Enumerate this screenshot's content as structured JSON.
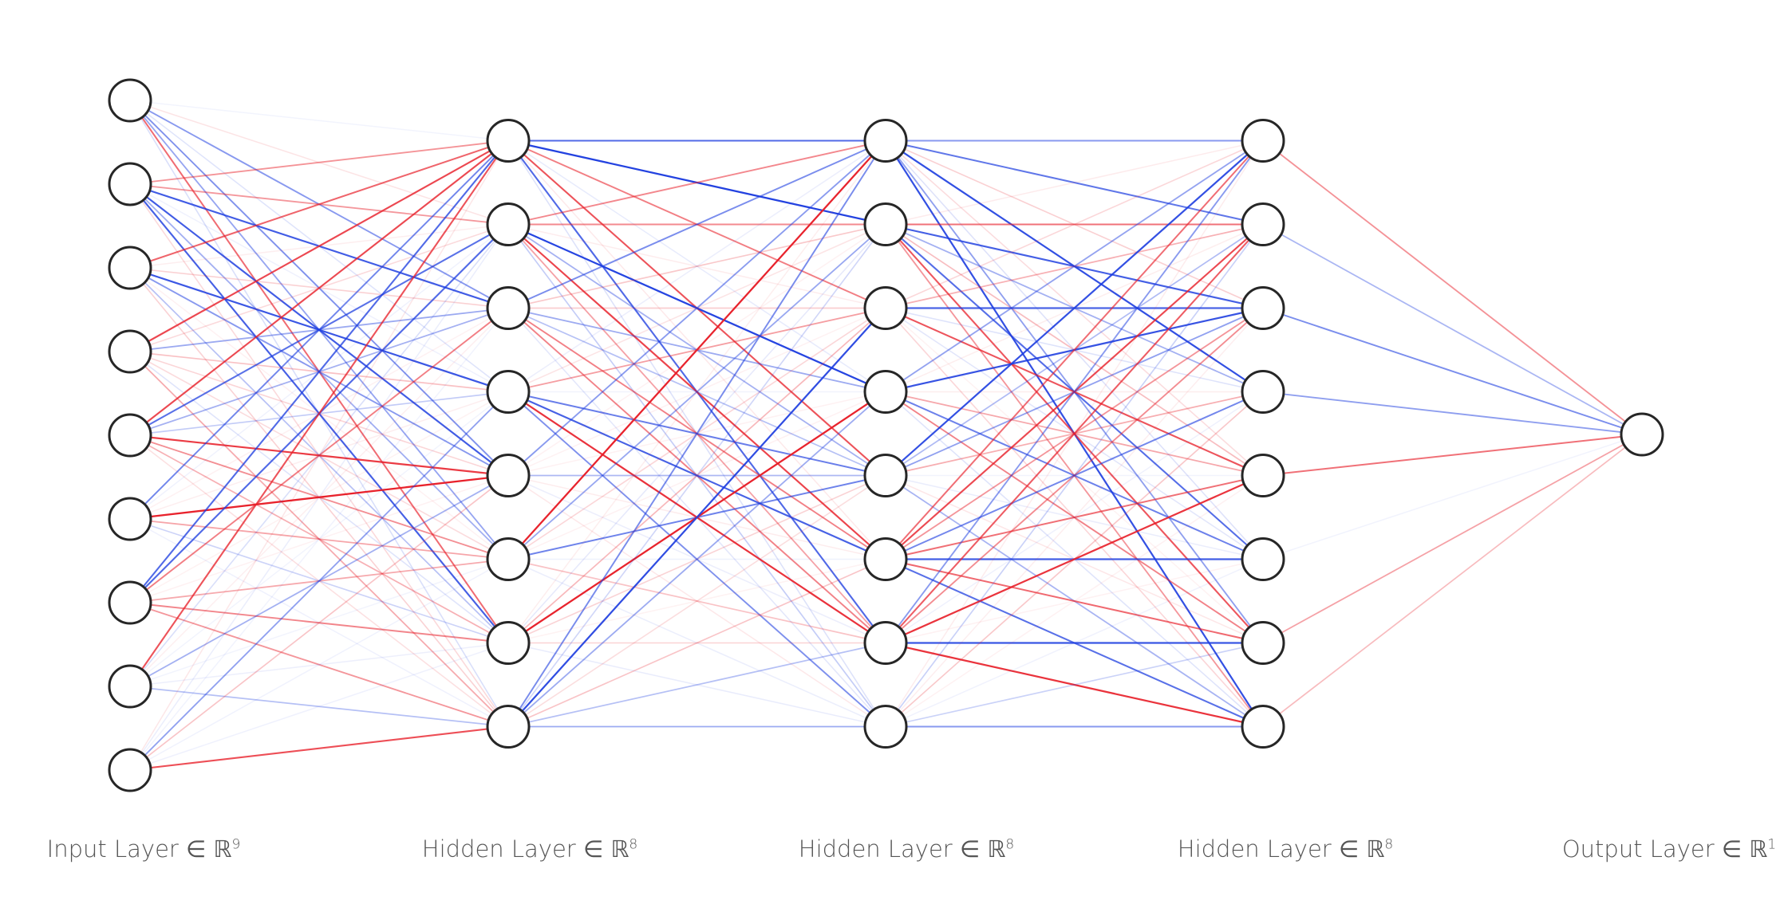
{
  "layers": [
    {
      "name": "Input Layer",
      "symbol": "∈ ℝ",
      "dim": "9",
      "size": 9
    },
    {
      "name": "Hidden Layer",
      "symbol": "∈ ℝ",
      "dim": "8",
      "size": 8
    },
    {
      "name": "Hidden Layer",
      "symbol": "∈ ℝ",
      "dim": "8",
      "size": 8
    },
    {
      "name": "Hidden Layer",
      "symbol": "∈ ℝ",
      "dim": "8",
      "size": 8
    },
    {
      "name": "Output Layer",
      "symbol": "∈ ℝ",
      "dim": "1",
      "size": 1
    }
  ],
  "colors": {
    "positive": "#e8202a",
    "negative": "#1f3fe0",
    "node_fill": "#ffffff",
    "node_stroke": "#262626"
  },
  "weights_seed": 7
}
